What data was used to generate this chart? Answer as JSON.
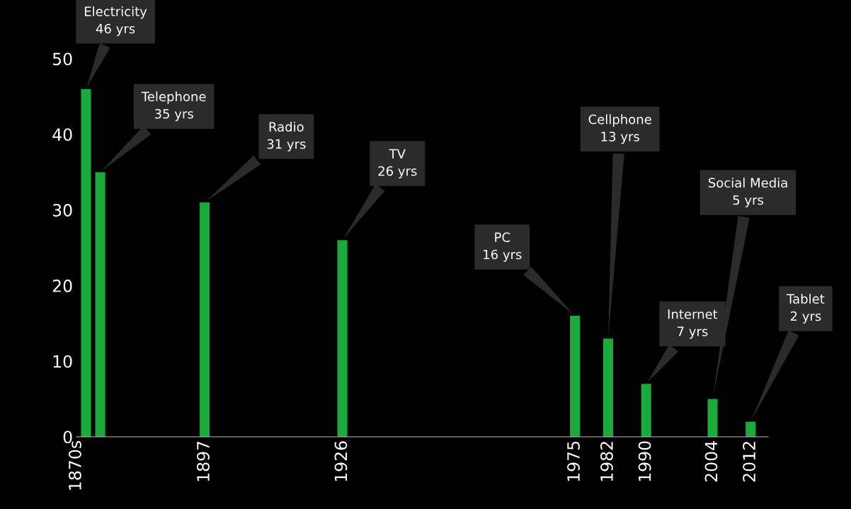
{
  "chart_data": {
    "type": "bar",
    "x": [
      1872,
      1875,
      1897,
      1926,
      1975,
      1982,
      1990,
      2004,
      2012
    ],
    "values": [
      46,
      35,
      31,
      26,
      16,
      13,
      7,
      5,
      2
    ],
    "annotations": [
      "Electricity\n46 yrs",
      "Telephone\n35 yrs",
      "Radio\n31 yrs",
      "TV\n26 yrs",
      "PC\n16 yrs",
      "Cellphone\n13 yrs",
      "Internet\n7 yrs",
      "Social Media\n5 yrs",
      "Tablet\n2 yrs"
    ],
    "color": "#1aaa3c",
    "xlim": [
      1870,
      2015.7
    ],
    "xticks": [
      {
        "value": 1870,
        "label": "1870s"
      },
      1897,
      1926,
      1975,
      1982,
      1990,
      2004,
      2012
    ],
    "ylim": [
      0,
      50
    ],
    "yticks": [
      0,
      10,
      20,
      30,
      40,
      50
    ],
    "grid": false,
    "legend": false
  }
}
